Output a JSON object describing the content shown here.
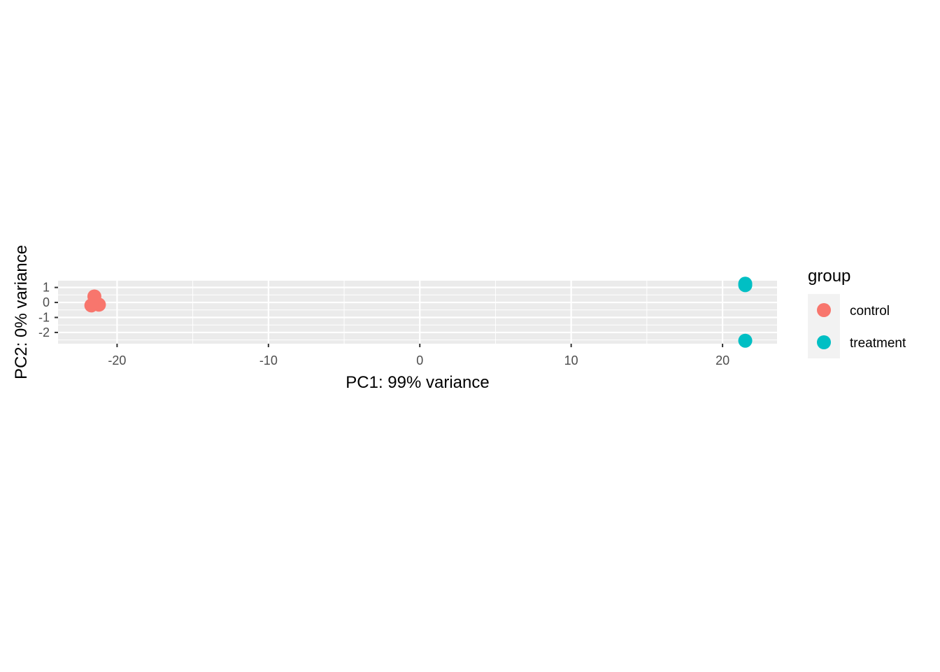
{
  "chart_data": {
    "type": "scatter",
    "title": "",
    "xlabel": "PC1: 99% variance",
    "ylabel": "PC2: 0% variance",
    "xlim": [
      -23.9,
      23.6
    ],
    "ylim": [
      -2.75,
      1.45
    ],
    "x_ticks": [
      -20,
      -10,
      0,
      10,
      20
    ],
    "x_tick_labels": [
      "-20",
      "-10",
      "0",
      "10",
      "20"
    ],
    "y_ticks": [
      -2,
      -1,
      0,
      1
    ],
    "y_tick_labels": [
      "-2",
      "-1",
      "0",
      "1"
    ],
    "grid": true,
    "legend": {
      "title": "group",
      "placement": "right"
    },
    "series": [
      {
        "name": "control",
        "color": "#F8766D",
        "points": [
          {
            "x": -21.5,
            "y": 0.4
          },
          {
            "x": -21.2,
            "y": -0.15
          },
          {
            "x": -21.7,
            "y": -0.2
          }
        ]
      },
      {
        "name": "treatment",
        "color": "#00BFC4",
        "points": [
          {
            "x": 21.5,
            "y": 1.25
          },
          {
            "x": 21.5,
            "y": 1.15
          },
          {
            "x": 21.5,
            "y": -2.55
          }
        ]
      }
    ]
  }
}
